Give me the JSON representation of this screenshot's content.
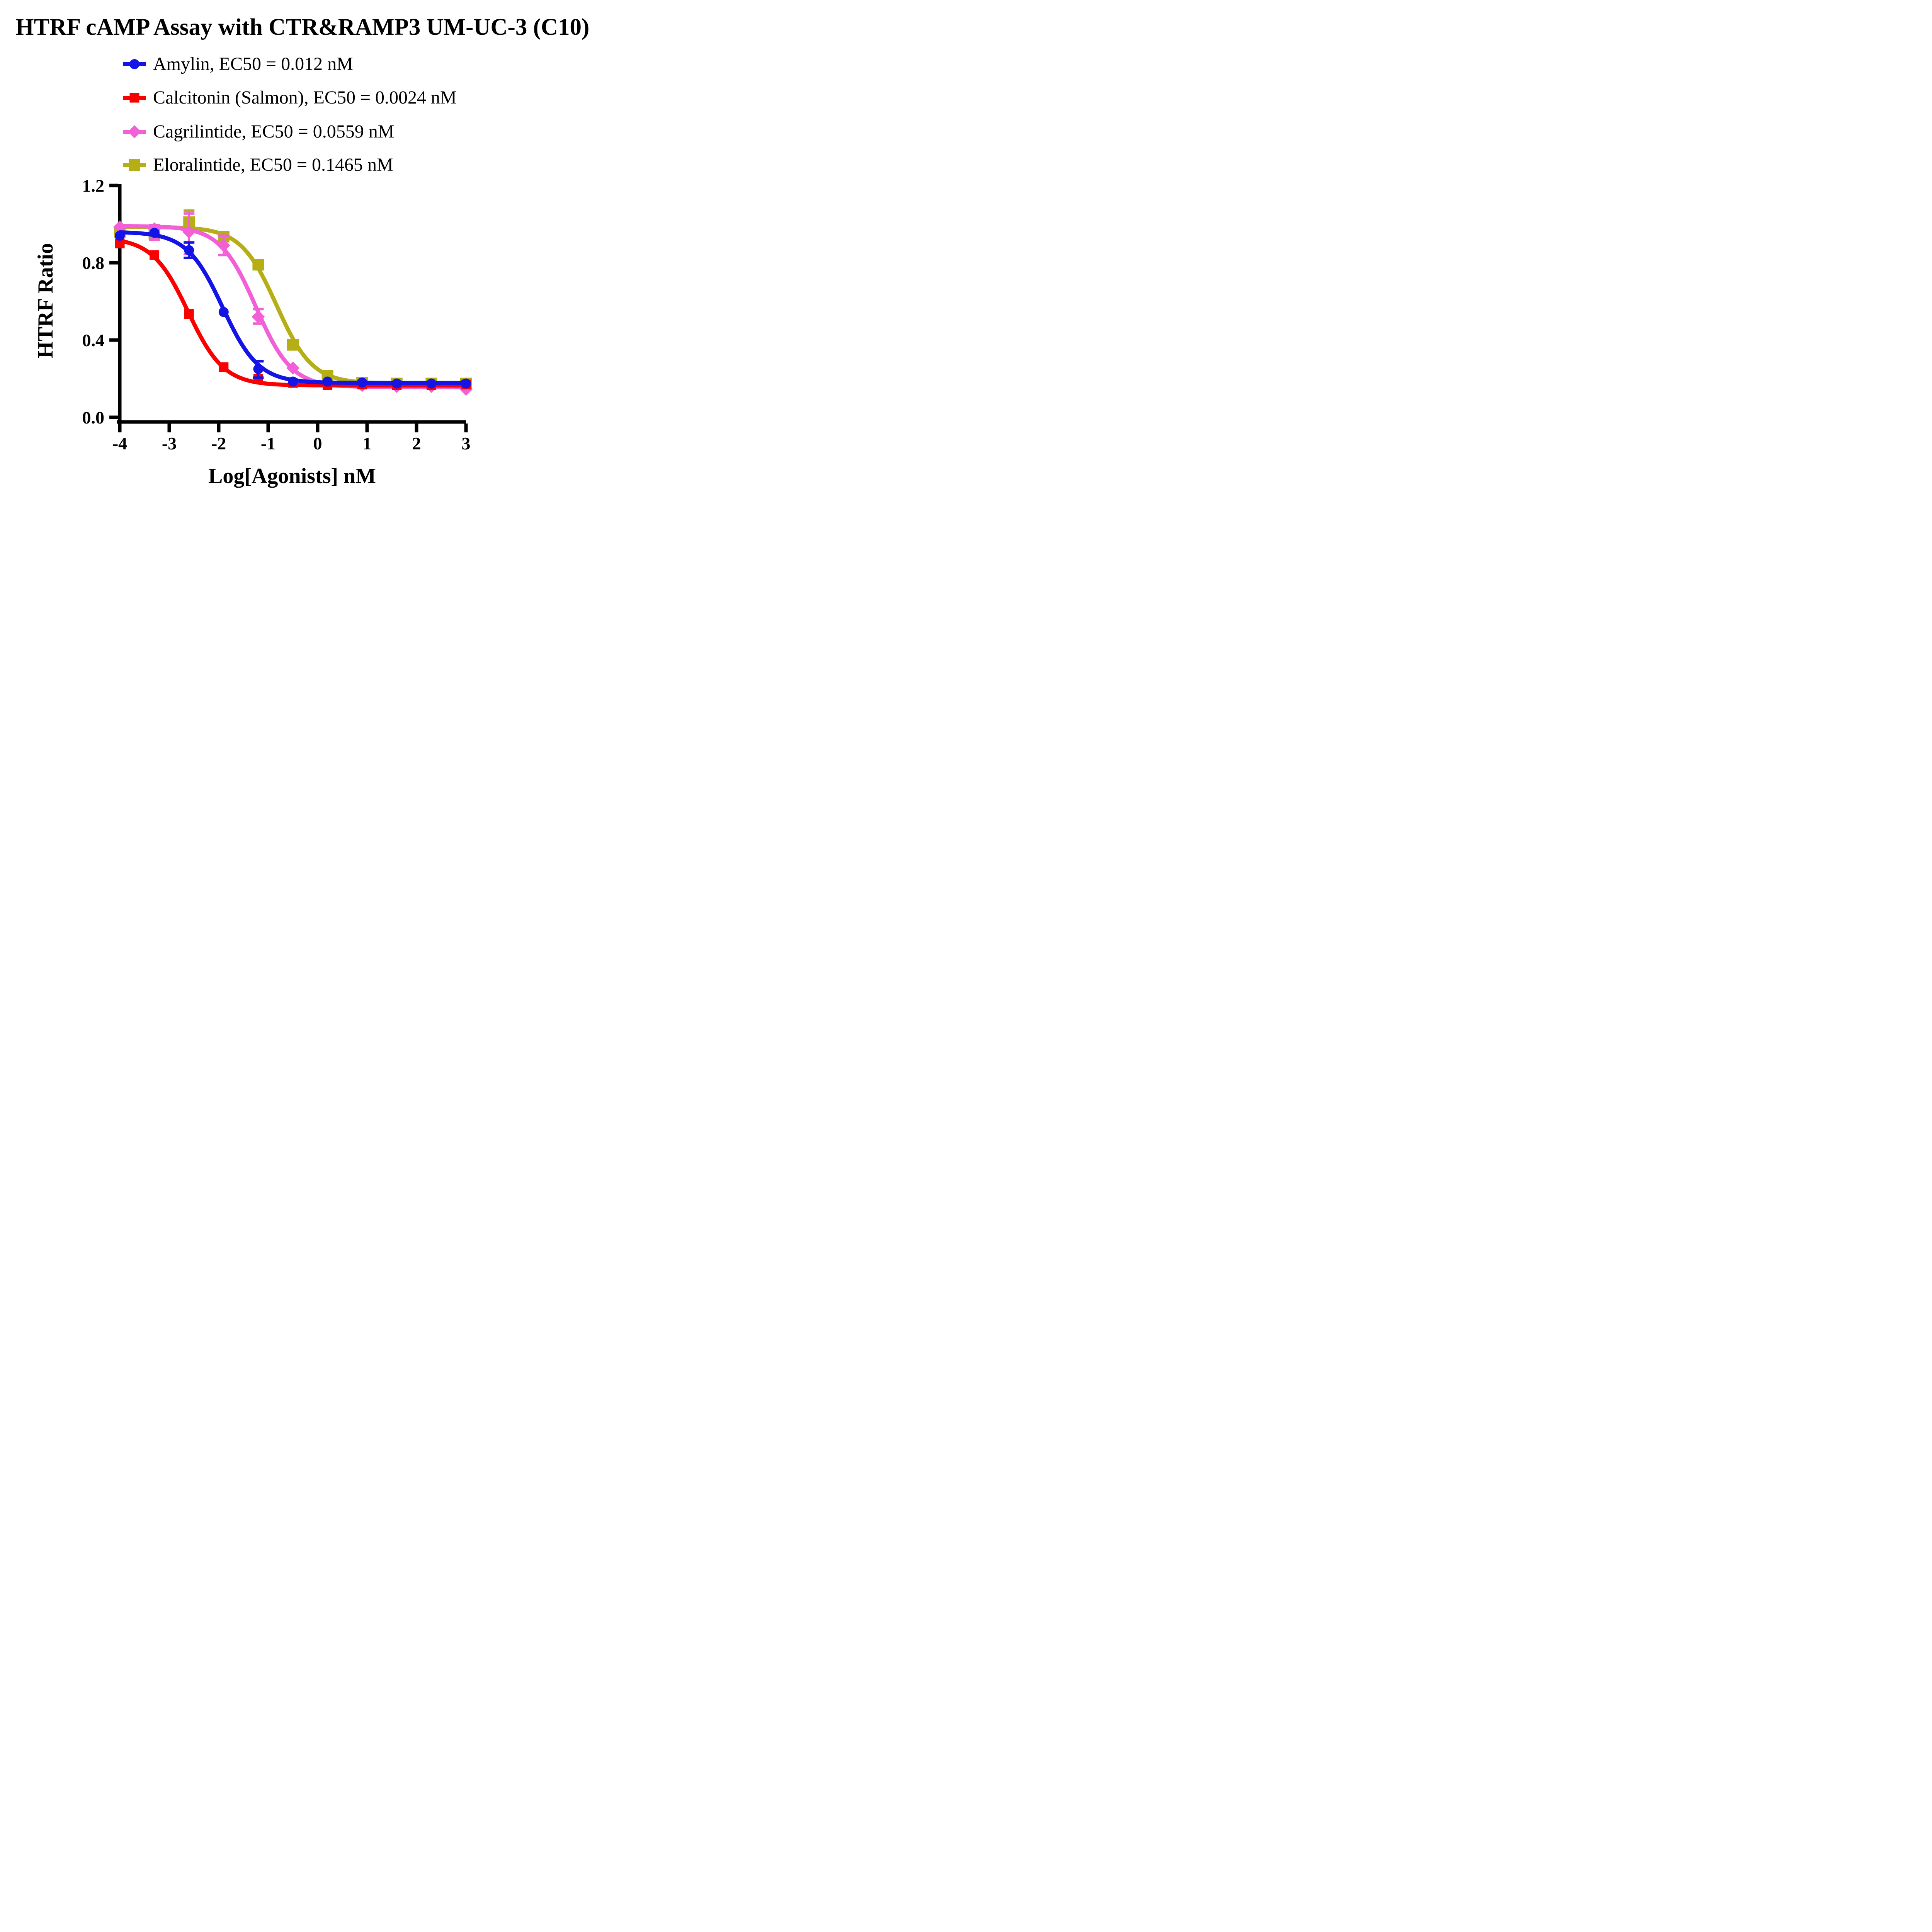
{
  "title": "HTRF cAMP Assay with CTR&RAMP3 UM-UC-3 (C10)",
  "chart_data": {
    "type": "line",
    "title": "HTRF cAMP Assay with CTR&RAMP3 UM-UC-3 (C10)",
    "xlabel": "Log[Agonists] nM",
    "ylabel": "HTRF Ratio",
    "xlim": [
      -4,
      3
    ],
    "ylim": [
      0.0,
      1.2
    ],
    "grid": "off",
    "legend_position": "top-left column",
    "x_ticks": [
      "-4",
      "-3",
      "-2",
      "-1",
      "0",
      "1",
      "2",
      "3"
    ],
    "y_ticks": [
      "0.0",
      "0.4",
      "0.8",
      "1.2"
    ],
    "x": [
      -4,
      -3.3,
      -2.6,
      -1.9,
      -1.2,
      -0.5,
      0.2,
      0.9,
      1.6,
      2.3,
      3
    ],
    "series": [
      {
        "name": "Amylin",
        "legend_label": "Amylin, EC50 = 0.012 nM",
        "ec50_nM": 0.012,
        "color": "#1414e6",
        "marker": "circle",
        "y": [
          0.94,
          0.955,
          0.865,
          0.545,
          0.25,
          0.185,
          0.185,
          0.18,
          0.175,
          0.175,
          0.175
        ],
        "err_up": [
          0,
          0,
          0.04,
          0,
          0.04,
          0,
          0,
          0,
          0,
          0,
          0
        ],
        "err_dn": [
          0,
          0,
          0.04,
          0,
          0.045,
          0,
          0,
          0,
          0,
          0,
          0
        ],
        "fit": {
          "top": 0.96,
          "bottom": 0.178,
          "log_ec50": -1.92,
          "hill": 1.2
        }
      },
      {
        "name": "Calcitonin (Salmon)",
        "legend_label": "Calcitonin (Salmon), EC50 = 0.0024 nM",
        "ec50_nM": 0.0024,
        "color": "#fa0000",
        "marker": "square",
        "y": [
          0.9,
          0.84,
          0.535,
          0.26,
          0.2,
          0.178,
          0.165,
          0.17,
          0.165,
          0.165,
          0.17
        ],
        "err_up": [
          0,
          0,
          0,
          0,
          0,
          0,
          0,
          0,
          0,
          0,
          0
        ],
        "err_dn": [
          0,
          0,
          0,
          0,
          0,
          0,
          0,
          0,
          0,
          0,
          0
        ],
        "fit": {
          "top": 0.93,
          "bottom": 0.165,
          "log_ec50": -2.62,
          "hill": 1.2
        }
      },
      {
        "name": "Cagrilintide",
        "legend_label": "Cagrilintide, EC50 = 0.0559 nM",
        "ec50_nM": 0.0559,
        "color": "#f25fd7",
        "marker": "diamond",
        "y": [
          0.985,
          0.975,
          0.96,
          0.89,
          0.52,
          0.255,
          0.175,
          0.165,
          0.16,
          0.16,
          0.145
        ],
        "err_up": [
          0,
          0.02,
          0.095,
          0.05,
          0.04,
          0,
          0,
          0,
          0,
          0,
          0
        ],
        "err_dn": [
          0,
          0.055,
          0.115,
          0.05,
          0.035,
          0,
          0,
          0,
          0,
          0,
          0
        ],
        "fit": {
          "top": 0.99,
          "bottom": 0.156,
          "log_ec50": -1.25,
          "hill": 1.2
        }
      },
      {
        "name": "Eloralintide",
        "legend_label": "Eloralintide, EC50 = 0.1465 nM",
        "ec50_nM": 0.1465,
        "color": "#b5ae14",
        "marker": "square-large",
        "y": [
          0.96,
          0.95,
          1.01,
          0.935,
          0.79,
          0.375,
          0.215,
          0.18,
          0.175,
          0.175,
          0.175
        ],
        "err_up": [
          0,
          0,
          0.06,
          0,
          0,
          0,
          0,
          0,
          0,
          0,
          0
        ],
        "err_dn": [
          0,
          0,
          0,
          0,
          0,
          0,
          0,
          0,
          0,
          0,
          0
        ],
        "fit": {
          "top": 0.985,
          "bottom": 0.175,
          "log_ec50": -0.83,
          "hill": 1.2
        }
      }
    ]
  }
}
